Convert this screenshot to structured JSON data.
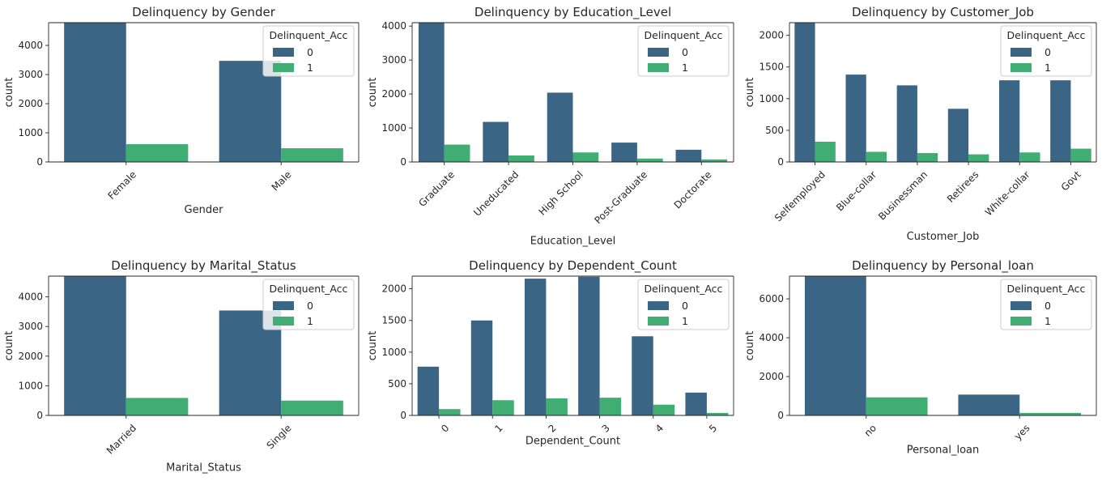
{
  "colors": {
    "0": "#3b6584",
    "1": "#40ad72"
  },
  "chart_data": [
    {
      "type": "bar",
      "title": "Delinquency by Gender",
      "xlabel": "Gender",
      "ylabel": "count",
      "categories": [
        "Female",
        "Male"
      ],
      "series": [
        {
          "name": "0",
          "values": [
            4770,
            3470
          ]
        },
        {
          "name": "1",
          "values": [
            610,
            470
          ]
        }
      ],
      "ylim": [
        0,
        4780
      ],
      "yticks": [
        0,
        1000,
        2000,
        3000,
        4000
      ],
      "legend": {
        "title": "Delinquent_Acc",
        "entries": [
          "0",
          "1"
        ],
        "position": "top-right"
      }
    },
    {
      "type": "bar",
      "title": "Delinquency by Education_Level",
      "xlabel": "Education_Level",
      "ylabel": "count",
      "categories": [
        "Graduate",
        "Uneducated",
        "High School",
        "Post-Graduate",
        "Doctorate"
      ],
      "series": [
        {
          "name": "0",
          "values": [
            4090,
            1180,
            2040,
            570,
            360
          ]
        },
        {
          "name": "1",
          "values": [
            510,
            190,
            280,
            100,
            75
          ]
        }
      ],
      "ylim": [
        0,
        4100
      ],
      "yticks": [
        0,
        1000,
        2000,
        3000,
        4000
      ],
      "legend": {
        "title": "Delinquent_Acc",
        "entries": [
          "0",
          "1"
        ],
        "position": "top-right"
      }
    },
    {
      "type": "bar",
      "title": "Delinquency by Customer_Job",
      "xlabel": "Customer_Job",
      "ylabel": "count",
      "categories": [
        "Selfemployed",
        "Blue-collar",
        "Businessman",
        "Retirees",
        "White-collar",
        "Govt"
      ],
      "series": [
        {
          "name": "0",
          "values": [
            2200,
            1380,
            1210,
            840,
            1290,
            1290
          ]
        },
        {
          "name": "1",
          "values": [
            320,
            160,
            140,
            120,
            150,
            210
          ]
        }
      ],
      "ylim": [
        0,
        2200
      ],
      "yticks": [
        0,
        500,
        1000,
        1500,
        2000
      ],
      "legend": {
        "title": "Delinquent_Acc",
        "entries": [
          "0",
          "1"
        ],
        "position": "top-right"
      }
    },
    {
      "type": "bar",
      "title": "Delinquency by Marital_Status",
      "xlabel": "Marital_Status",
      "ylabel": "count",
      "categories": [
        "Married",
        "Single"
      ],
      "series": [
        {
          "name": "0",
          "values": [
            4690,
            3540
          ]
        },
        {
          "name": "1",
          "values": [
            590,
            500
          ]
        }
      ],
      "ylim": [
        0,
        4700
      ],
      "yticks": [
        0,
        1000,
        2000,
        3000,
        4000
      ],
      "legend": {
        "title": "Delinquent_Acc",
        "entries": [
          "0",
          "1"
        ],
        "position": "top-right"
      }
    },
    {
      "type": "bar",
      "title": "Delinquency by Dependent_Count",
      "xlabel": "Dependent_Count",
      "ylabel": "count",
      "categories": [
        "0",
        "1",
        "2",
        "3",
        "4",
        "5"
      ],
      "series": [
        {
          "name": "0",
          "values": [
            770,
            1500,
            2160,
            2190,
            1250,
            360
          ]
        },
        {
          "name": "1",
          "values": [
            100,
            240,
            270,
            280,
            170,
            40
          ]
        }
      ],
      "ylim": [
        0,
        2200
      ],
      "yticks": [
        0,
        500,
        1000,
        1500,
        2000
      ],
      "legend": {
        "title": "Delinquent_Acc",
        "entries": [
          "0",
          "1"
        ],
        "position": "top-right"
      }
    },
    {
      "type": "bar",
      "title": "Delinquency by Personal_loan",
      "xlabel": "Personal_loan",
      "ylabel": "count",
      "categories": [
        "no",
        "yes"
      ],
      "series": [
        {
          "name": "0",
          "values": [
            7160,
            1070
          ]
        },
        {
          "name": "1",
          "values": [
            930,
            130
          ]
        }
      ],
      "ylim": [
        0,
        7170
      ],
      "yticks": [
        0,
        2000,
        4000,
        6000
      ],
      "legend": {
        "title": "Delinquent_Acc",
        "entries": [
          "0",
          "1"
        ],
        "position": "top-right"
      }
    }
  ]
}
